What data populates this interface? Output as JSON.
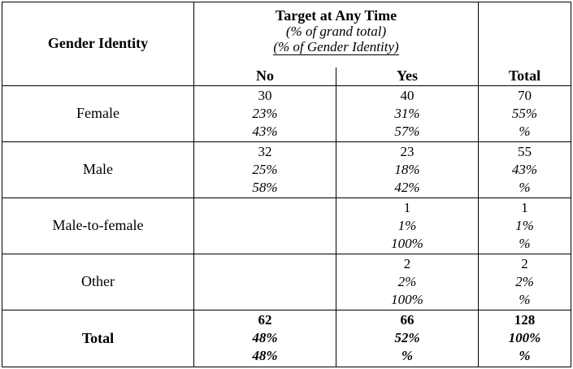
{
  "table": {
    "row_header_label": "Gender Identity",
    "group_header": {
      "title": "Target at Any Time",
      "subtitle1": "(% of grand total)",
      "subtitle2": "(% of Gender Identity)"
    },
    "columns": [
      "No",
      "Yes",
      "Total"
    ],
    "rows": [
      {
        "label": "Female",
        "no": [
          "30",
          "23%",
          "43%"
        ],
        "yes": [
          "40",
          "31%",
          "57%"
        ],
        "total": [
          "70",
          "55%",
          "%"
        ]
      },
      {
        "label": "Male",
        "no": [
          "32",
          "25%",
          "58%"
        ],
        "yes": [
          "23",
          "18%",
          "42%"
        ],
        "total": [
          "55",
          "43%",
          "%"
        ]
      },
      {
        "label": "Male-to-female",
        "no": [
          "",
          "",
          ""
        ],
        "yes": [
          "1",
          "1%",
          "100%"
        ],
        "total": [
          "1",
          "1%",
          "%"
        ]
      },
      {
        "label": "Other",
        "no": [
          "",
          "",
          ""
        ],
        "yes": [
          "2",
          "2%",
          "100%"
        ],
        "total": [
          "2",
          "2%",
          "%"
        ]
      },
      {
        "label": "Total",
        "no": [
          "62",
          "48%",
          "48%"
        ],
        "yes": [
          "66",
          "52%",
          "%"
        ],
        "total": [
          "128",
          "100%",
          "%"
        ]
      }
    ]
  }
}
